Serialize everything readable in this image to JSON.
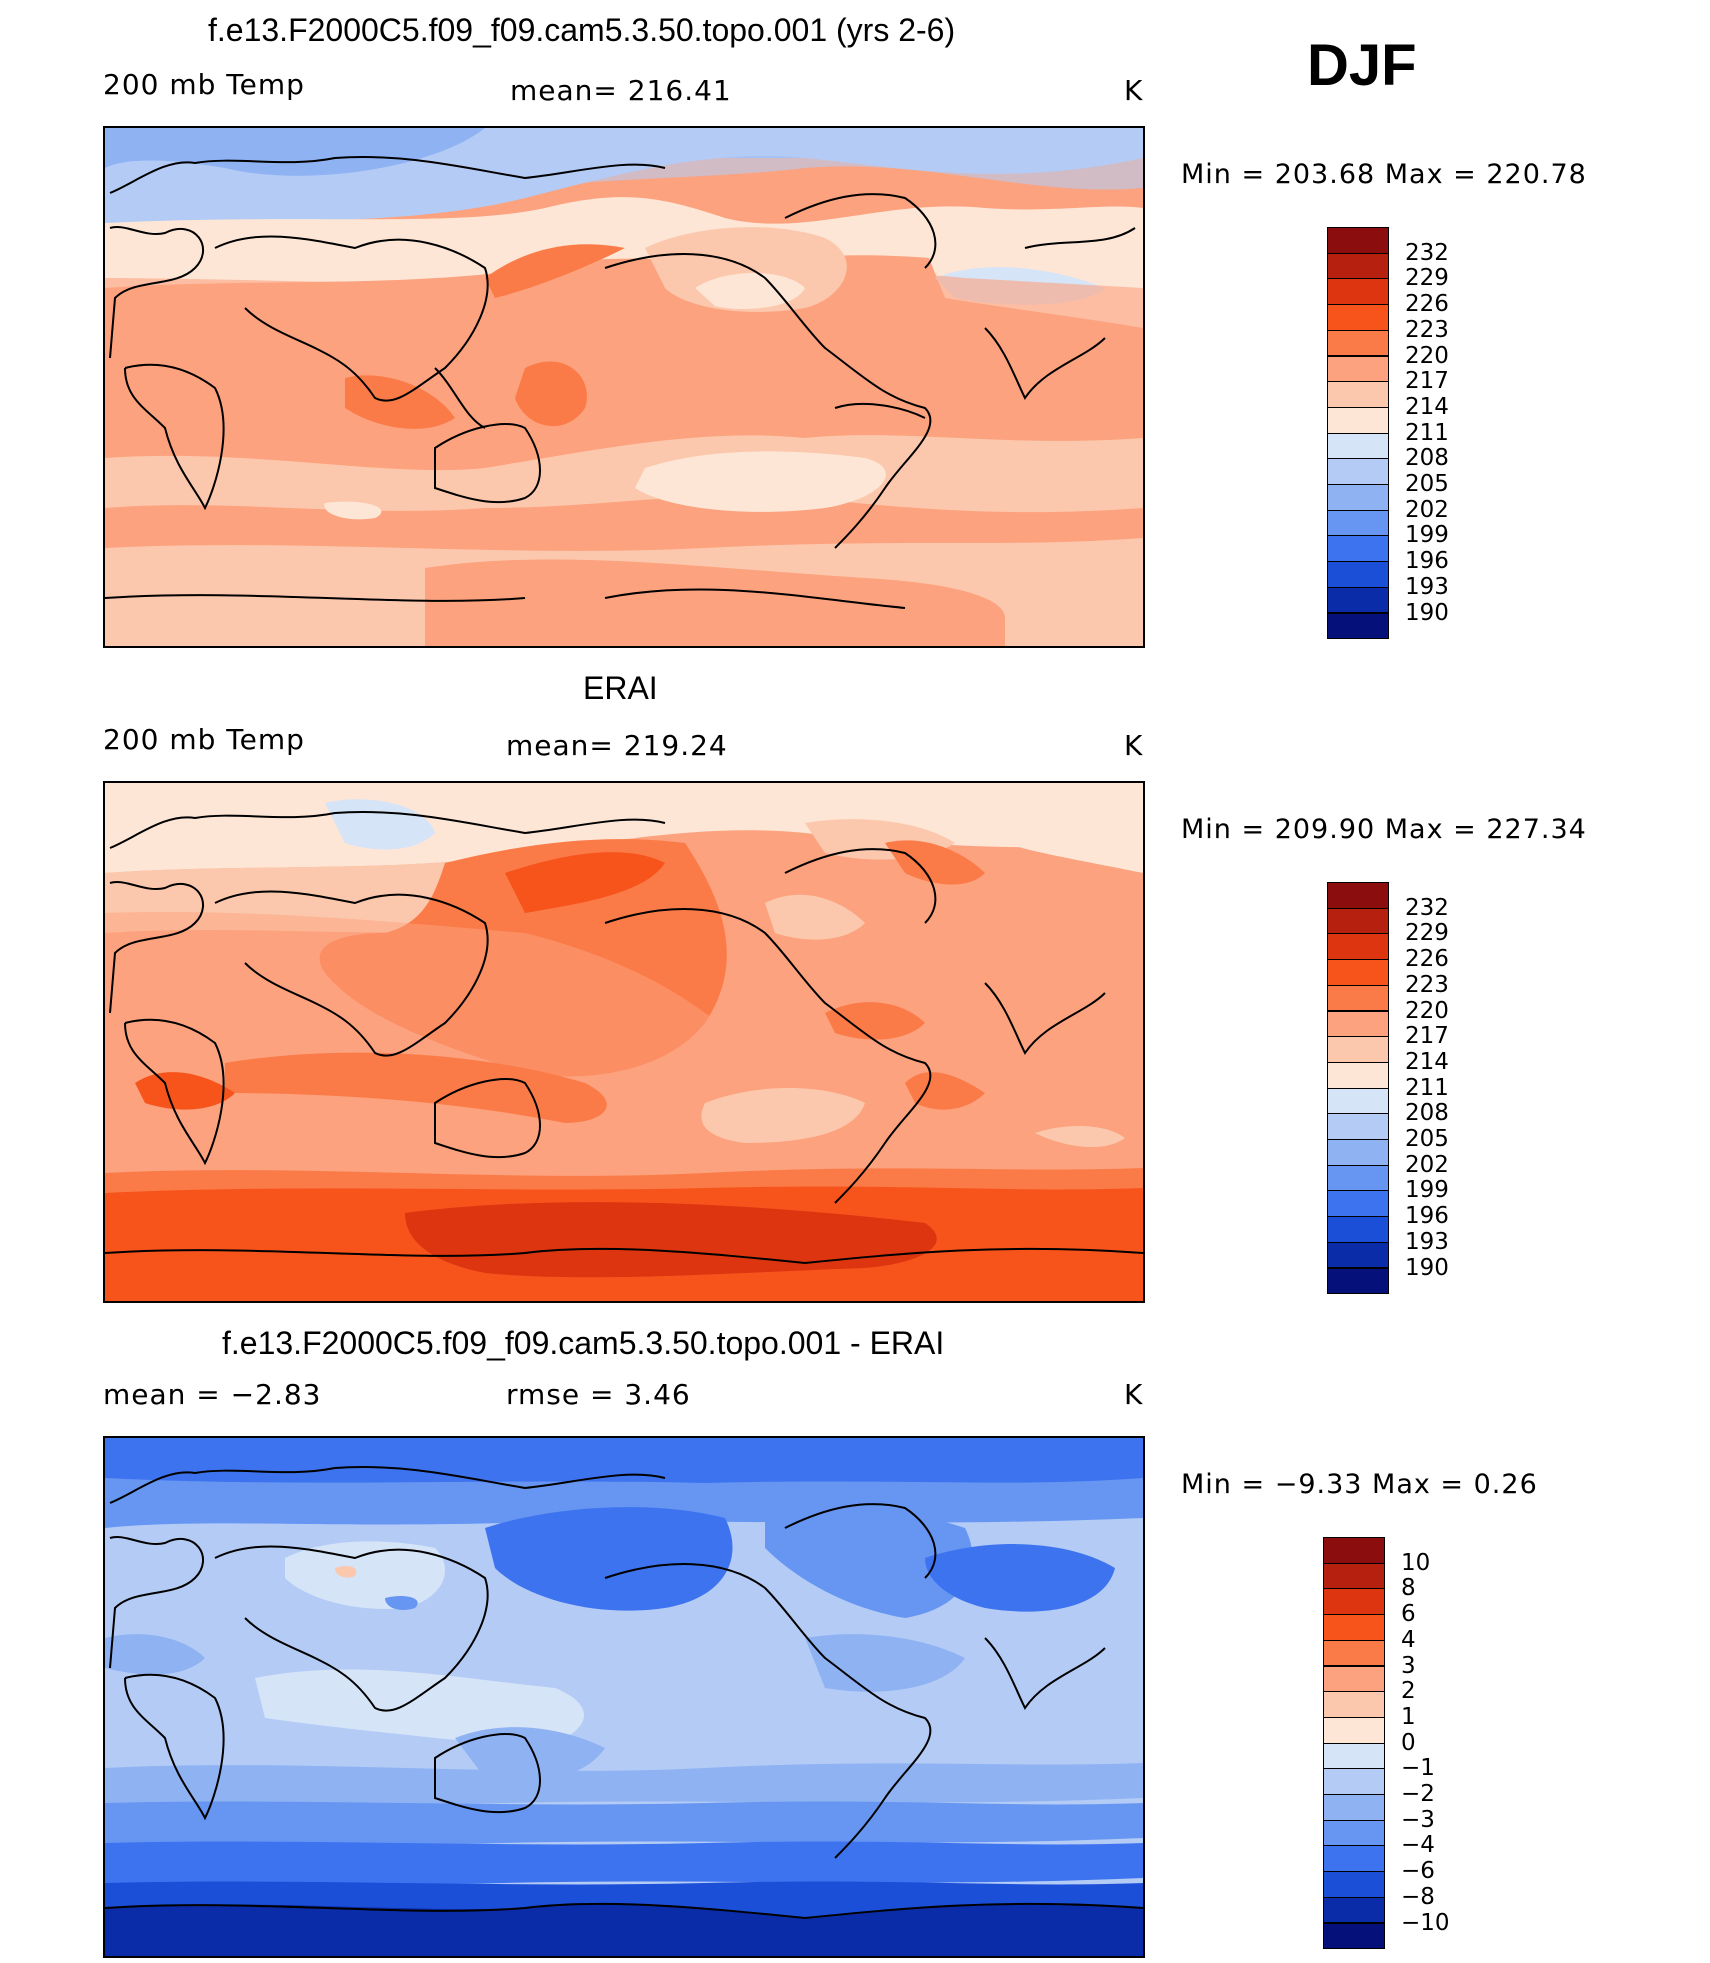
{
  "header": {
    "season": "DJF"
  },
  "panels": [
    {
      "title": "f.e13.F2000C5.f09_f09.cam5.3.50.topo.001 (yrs 2-6)",
      "left_label": "200 mb Temp",
      "center_label": "mean= 216.41",
      "units": "K",
      "minmax": "Min  =  203.68  Max  =  220.78",
      "colorbar_labels": [
        "232",
        "229",
        "226",
        "223",
        "220",
        "217",
        "214",
        "211",
        "208",
        "205",
        "202",
        "199",
        "196",
        "193",
        "190"
      ],
      "colorbar_colors": [
        "#8c0d0d",
        "#b5200f",
        "#dc3510",
        "#f7541c",
        "#fb7b48",
        "#fca27e",
        "#fcc8ad",
        "#fde6d6",
        "#d6e4f8",
        "#b4ccf5",
        "#8fb2f3",
        "#6696f2",
        "#3e73ef",
        "#1c4fd8",
        "#0a2ca8",
        "#06107a"
      ]
    },
    {
      "title": "ERAI",
      "left_label": "200 mb Temp",
      "center_label": "mean= 219.24",
      "units": "K",
      "minmax": "Min  =  209.90  Max  =  227.34",
      "colorbar_labels": [
        "232",
        "229",
        "226",
        "223",
        "220",
        "217",
        "214",
        "211",
        "208",
        "205",
        "202",
        "199",
        "196",
        "193",
        "190"
      ],
      "colorbar_colors": [
        "#8c0d0d",
        "#b5200f",
        "#dc3510",
        "#f7541c",
        "#fb7b48",
        "#fca27e",
        "#fcc8ad",
        "#fde6d6",
        "#d6e4f8",
        "#b4ccf5",
        "#8fb2f3",
        "#6696f2",
        "#3e73ef",
        "#1c4fd8",
        "#0a2ca8",
        "#06107a"
      ]
    },
    {
      "title": "f.e13.F2000C5.f09_f09.cam5.3.50.topo.001 - ERAI",
      "left_label": "mean  =    −2.83",
      "center_label": "rmse  =     3.46",
      "units": "K",
      "minmax": "Min  =    −9.33  Max  =     0.26",
      "colorbar_labels": [
        "10",
        "8",
        "6",
        "4",
        "3",
        "2",
        "1",
        "0",
        "−1",
        "−2",
        "−3",
        "−4",
        "−6",
        "−8",
        "−10"
      ],
      "colorbar_colors": [
        "#8c0d0d",
        "#b5200f",
        "#dc3510",
        "#f7541c",
        "#fb7b48",
        "#fca27e",
        "#fcc8ad",
        "#fde6d6",
        "#d6e4f8",
        "#b4ccf5",
        "#8fb2f3",
        "#6696f2",
        "#3e73ef",
        "#1c4fd8",
        "#0a2ca8",
        "#06107a"
      ]
    }
  ]
}
